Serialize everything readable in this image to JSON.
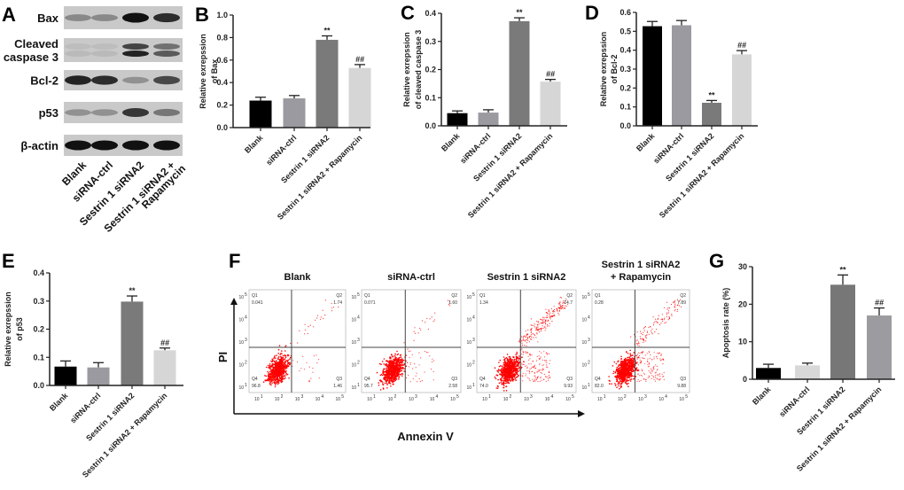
{
  "panel_letters": {
    "A": "A",
    "B": "B",
    "C": "C",
    "D": "D",
    "E": "E",
    "F": "F",
    "G": "G"
  },
  "western_blot": {
    "rows": [
      "Bax",
      "Cleaved caspase 3",
      "Bcl-2",
      "p53",
      "β-actin"
    ],
    "row_lines": [
      [
        "Bax"
      ],
      [
        "Cleaved",
        "caspase 3"
      ],
      [
        "Bcl-2"
      ],
      [
        "p53"
      ],
      [
        "β-actin"
      ]
    ],
    "lanes": [
      [
        "Blank"
      ],
      [
        "siRNA-ctrl"
      ],
      [
        "Sestrin 1 siRNA2"
      ],
      [
        "Sestrin 1 siRNA2 +",
        "Rapamycin"
      ]
    ],
    "band_intensity": [
      [
        0.35,
        0.35,
        1.0,
        0.85
      ],
      [
        0.08,
        0.08,
        0.9,
        0.6
      ],
      [
        0.9,
        0.85,
        0.3,
        0.7
      ],
      [
        0.3,
        0.3,
        0.8,
        0.45
      ],
      [
        1.0,
        1.0,
        1.0,
        1.0
      ]
    ]
  },
  "chart_data": [
    {
      "id": "B",
      "type": "bar",
      "ylabel": [
        "Relative exrepssion",
        "of Bax"
      ],
      "ylim": [
        0,
        1.0
      ],
      "ystep": 0.2,
      "decimals": 1,
      "categories": [
        "Blank",
        "siRNA-ctrl",
        "Sestrin 1 siRNA2",
        "Sestrin 1 siRNA2 + Rapamycin"
      ],
      "values": [
        0.24,
        0.26,
        0.78,
        0.53
      ],
      "errors": [
        0.03,
        0.025,
        0.035,
        0.03
      ],
      "marks": [
        "",
        "",
        "**",
        "##"
      ],
      "colors": [
        "#000000",
        "#9a9aa0",
        "#7a7a7a",
        "#d6d6d6"
      ]
    },
    {
      "id": "C",
      "type": "bar",
      "ylabel": [
        "Relative exrepssion",
        "of cleaved caspase 3"
      ],
      "ylim": [
        0,
        0.4
      ],
      "ystep": 0.1,
      "decimals": 1,
      "categories": [
        "Blank",
        "siRNA-ctrl",
        "Sestrin 1 siRNA2",
        "Sestrin 1 siRNA2 + Rapamycin"
      ],
      "values": [
        0.045,
        0.047,
        0.372,
        0.157
      ],
      "errors": [
        0.008,
        0.01,
        0.012,
        0.008
      ],
      "marks": [
        "",
        "",
        "**",
        "##"
      ],
      "colors": [
        "#000000",
        "#9a9aa0",
        "#7a7a7a",
        "#d6d6d6"
      ]
    },
    {
      "id": "D",
      "type": "bar",
      "ylabel": [
        "Relative exrepssion",
        "of Bcl-2"
      ],
      "ylim": [
        0,
        0.6
      ],
      "ystep": 0.1,
      "decimals": 1,
      "categories": [
        "Blank",
        "siRNA-ctrl",
        "Sestrin 1 siRNA2",
        "Sestrin 1 siRNA2 + Rapamycin"
      ],
      "values": [
        0.527,
        0.532,
        0.122,
        0.378
      ],
      "errors": [
        0.025,
        0.025,
        0.012,
        0.02
      ],
      "marks": [
        "",
        "",
        "**",
        "##"
      ],
      "colors": [
        "#000000",
        "#9a9aa0",
        "#7a7a7a",
        "#d6d6d6"
      ]
    },
    {
      "id": "E",
      "type": "bar",
      "ylabel": [
        "Relative exrepssion",
        "of p53"
      ],
      "ylim": [
        0,
        0.4
      ],
      "ystep": 0.1,
      "decimals": 1,
      "categories": [
        "Blank",
        "siRNA-ctrl",
        "Sestrin 1 siRNA2",
        "Sestrin 1 siRNA2 + Rapamycin"
      ],
      "values": [
        0.067,
        0.064,
        0.298,
        0.125
      ],
      "errors": [
        0.02,
        0.017,
        0.02,
        0.008
      ],
      "marks": [
        "",
        "",
        "**",
        "##"
      ],
      "colors": [
        "#000000",
        "#9a9aa0",
        "#7a7a7a",
        "#d6d6d6"
      ]
    },
    {
      "id": "G",
      "type": "bar",
      "ylabel": [
        "Apoptosis rate (%)"
      ],
      "ylim": [
        0,
        30
      ],
      "ystep": 10,
      "decimals": 0,
      "categories": [
        "Blank",
        "siRNA-ctrl",
        "Sestrin 1 siRNA2",
        "Sestrin 1 siRNA2 + Rapamycin"
      ],
      "values": [
        3.0,
        3.7,
        25.2,
        17.0
      ],
      "errors": [
        1.0,
        0.6,
        2.6,
        2.0
      ],
      "marks": [
        "",
        "",
        "**",
        "##"
      ],
      "colors": [
        "#000000",
        "#d8d8d8",
        "#777777",
        "#9c9ca0"
      ]
    },
    {
      "id": "F",
      "type": "scatter",
      "xlabel": "Annexin V",
      "ylabel": "PI",
      "axis_ticks": [
        "10",
        "10",
        "10",
        "10",
        "10"
      ],
      "axis_exponents": [
        "1",
        "2",
        "3",
        "4",
        "5"
      ],
      "panels": [
        {
          "title": [
            "Blank"
          ],
          "Q1": "0.041",
          "Q2": "1.74",
          "Q3": "1.46",
          "Q4": "96.8"
        },
        {
          "title": [
            "siRNA-ctrl"
          ],
          "Q1": "0.071",
          "Q2": "1.60",
          "Q3": "2.58",
          "Q4": "95.7"
        },
        {
          "title": [
            "Sestrin 1 siRNA2"
          ],
          "Q1": "1.34",
          "Q2": "14.7",
          "Q3": "9.93",
          "Q4": "74.0"
        },
        {
          "title": [
            "Sestrin 1 siRNA2",
            "+ Rapamycin"
          ],
          "Q1": "0.28",
          "Q2": "7.89",
          "Q3": "9.88",
          "Q4": "82.0"
        }
      ],
      "quadrant_names": [
        "Q1",
        "Q2",
        "Q3",
        "Q4"
      ],
      "dot_color": "#ff0000"
    }
  ]
}
